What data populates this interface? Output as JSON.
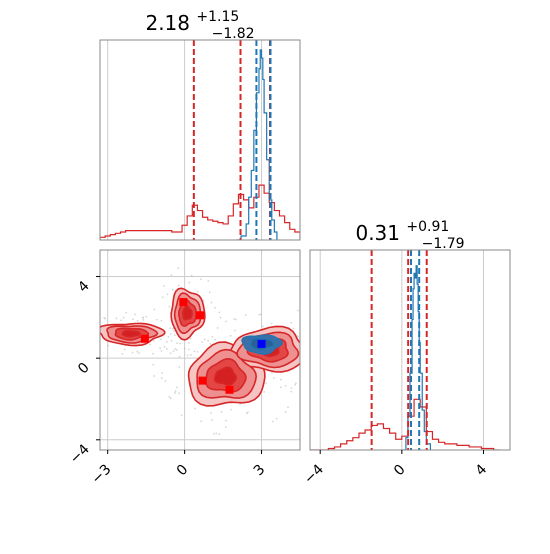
{
  "chart_data": [
    {
      "type": "histogram",
      "panel": "marginal-x",
      "title": {
        "value": "2.18",
        "plus": "+1.15",
        "minus": "−1.82"
      },
      "xlim": [
        -3.3,
        4.5
      ],
      "bins": [
        -3.3,
        -3.1,
        -2.9,
        -2.7,
        -2.5,
        -2.3,
        -2.1,
        -1.9,
        -1.7,
        -1.5,
        -1.3,
        -1.1,
        -0.9,
        -0.7,
        -0.5,
        -0.3,
        -0.1,
        0.1,
        0.3,
        0.5,
        0.7,
        0.9,
        1.1,
        1.3,
        1.5,
        1.7,
        1.9,
        2.1,
        2.3,
        2.5,
        2.7,
        2.9,
        3.1,
        3.3,
        3.5,
        3.7,
        3.9,
        4.1,
        4.3,
        4.5
      ],
      "series": [
        {
          "color": "#d62728",
          "values": [
            0.02,
            0.03,
            0.04,
            0.05,
            0.06,
            0.07,
            0.07,
            0.07,
            0.07,
            0.07,
            0.07,
            0.07,
            0.07,
            0.07,
            0.06,
            0.06,
            0.11,
            0.18,
            0.26,
            0.22,
            0.17,
            0.15,
            0.14,
            0.13,
            0.12,
            0.18,
            0.27,
            0.34,
            0.3,
            0.24,
            0.32,
            0.41,
            0.35,
            0.28,
            0.22,
            0.18,
            0.13,
            0.08,
            0.06
          ]
        },
        {
          "color": "#1f77b4",
          "curve_x": [
            2.0,
            2.2,
            2.4,
            2.5,
            2.6,
            2.7,
            2.8,
            2.9,
            2.95,
            3.0,
            3.05,
            3.1,
            3.2,
            3.3,
            3.4,
            3.5,
            3.6
          ],
          "curve_y": [
            0.0,
            0.03,
            0.12,
            0.32,
            0.52,
            0.82,
            1.1,
            1.28,
            1.42,
            1.36,
            1.2,
            0.95,
            0.6,
            0.3,
            0.15,
            0.06,
            0.0
          ]
        }
      ],
      "vlines": [
        {
          "x": 0.36,
          "color": "#d62728"
        },
        {
          "x": 2.18,
          "color": "#d62728"
        },
        {
          "x": 3.33,
          "color": "#d62728"
        },
        {
          "x": 2.8,
          "color": "#1f77b4"
        },
        {
          "x": 3.35,
          "color": "#1f77b4"
        }
      ],
      "grid": true
    },
    {
      "type": "contour",
      "panel": "joint",
      "xlim": [
        -3.3,
        4.5
      ],
      "ylim": [
        -4.5,
        5.3
      ],
      "xticks": [
        {
          "v": -3,
          "label": "−3"
        },
        {
          "v": 0,
          "label": "0"
        },
        {
          "v": 3,
          "label": "3"
        }
      ],
      "yticks": [
        {
          "v": -4,
          "label": "−4"
        },
        {
          "v": 0,
          "label": "0"
        },
        {
          "v": 4,
          "label": "4"
        }
      ],
      "grid": true,
      "red_blobs": [
        {
          "cx": -2.1,
          "cy": 1.2,
          "rx": 2.0,
          "ry": 0.85
        },
        {
          "cx": 0.1,
          "cy": 2.2,
          "rx": 1.05,
          "ry": 1.9
        },
        {
          "cx": 1.6,
          "cy": -0.9,
          "rx": 2.4,
          "ry": 2.4
        },
        {
          "cx": 3.3,
          "cy": 0.4,
          "rx": 2.4,
          "ry": 1.7
        }
      ],
      "blue_blob": {
        "cx": 3.0,
        "cy": 0.7,
        "rx": 0.75,
        "ry": 0.45
      },
      "red_markers": [
        [
          -1.55,
          0.95
        ],
        [
          -0.05,
          2.75
        ],
        [
          0.6,
          2.1
        ],
        [
          0.7,
          -1.1
        ],
        [
          1.75,
          -1.55
        ]
      ],
      "blue_markers": [
        [
          3.0,
          0.7
        ]
      ],
      "marker_color": "#ff0000",
      "blue_marker_color": "#0000ff"
    },
    {
      "type": "histogram",
      "panel": "marginal-y",
      "title": {
        "value": "0.31",
        "plus": "+0.91",
        "minus": "−1.79"
      },
      "xlim": [
        -4.5,
        5.3
      ],
      "xticks": [
        {
          "v": -4,
          "label": "−4"
        },
        {
          "v": 0,
          "label": "0"
        },
        {
          "v": 4,
          "label": "4"
        }
      ],
      "bins": [
        -4.5,
        -4.2,
        -3.9,
        -3.6,
        -3.3,
        -3.0,
        -2.7,
        -2.4,
        -2.1,
        -1.8,
        -1.5,
        -1.2,
        -0.9,
        -0.6,
        -0.3,
        0.0,
        0.3,
        0.6,
        0.9,
        1.2,
        1.5,
        1.8,
        2.1,
        2.4,
        2.7,
        3.0,
        3.3,
        3.6,
        3.9,
        4.2,
        4.5,
        4.8
      ],
      "series": [
        {
          "color": "#d62728",
          "values": [
            0.0,
            0.0,
            0.0,
            0.01,
            0.02,
            0.04,
            0.06,
            0.08,
            0.11,
            0.13,
            0.16,
            0.17,
            0.14,
            0.11,
            0.07,
            0.09,
            0.22,
            0.33,
            0.28,
            0.12,
            0.07,
            0.05,
            0.04,
            0.04,
            0.03,
            0.03,
            0.02,
            0.02,
            0.01,
            0.01,
            0.0
          ]
        },
        {
          "color": "#1f77b4",
          "curve_x": [
            0.0,
            0.2,
            0.3,
            0.4,
            0.5,
            0.55,
            0.6,
            0.65,
            0.7,
            0.75,
            0.8,
            0.85,
            0.9,
            1.0,
            1.1,
            1.2,
            1.4
          ],
          "curve_y": [
            0.0,
            0.08,
            0.22,
            0.5,
            0.85,
            1.05,
            1.15,
            1.12,
            1.2,
            1.08,
            0.9,
            0.7,
            0.5,
            0.26,
            0.12,
            0.04,
            0.0
          ]
        }
      ],
      "vlines": [
        {
          "x": -1.48,
          "color": "#d62728"
        },
        {
          "x": 0.31,
          "color": "#d62728"
        },
        {
          "x": 1.22,
          "color": "#d62728"
        },
        {
          "x": 0.45,
          "color": "#1f77b4"
        },
        {
          "x": 0.85,
          "color": "#1f77b4"
        }
      ],
      "grid": true
    }
  ]
}
